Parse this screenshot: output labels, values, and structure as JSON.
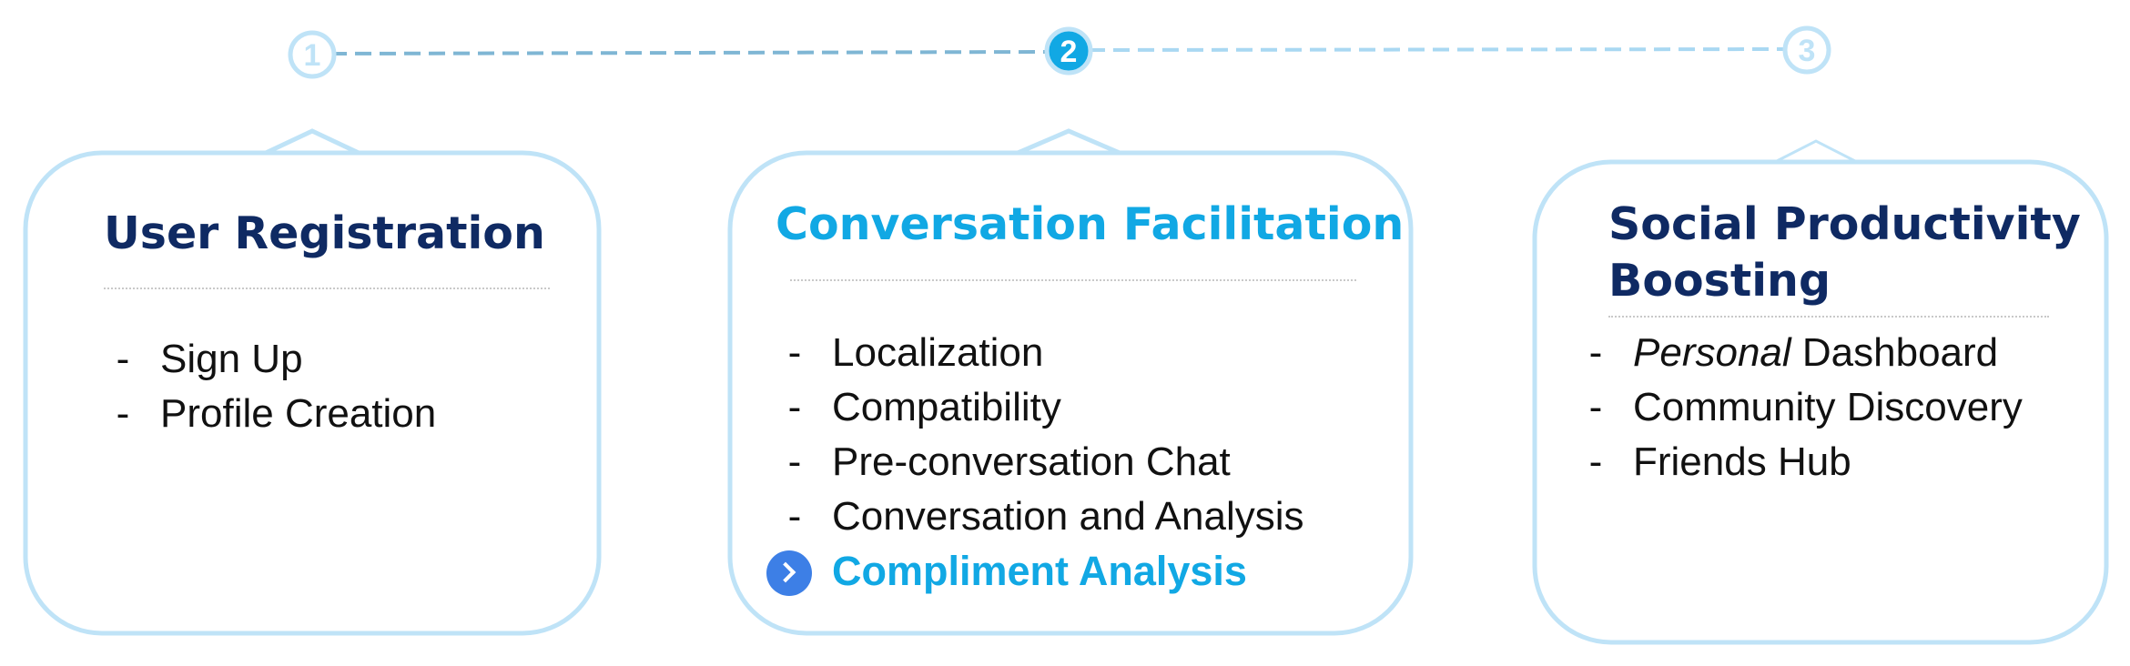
{
  "stages": [
    {
      "number": "1",
      "title": "User Registration",
      "title_line2": "",
      "items": [
        {
          "text": "Sign Up",
          "prefix_italic": ""
        },
        {
          "text": "Profile Creation",
          "prefix_italic": ""
        }
      ]
    },
    {
      "number": "2",
      "title": "Conversation Facilitation",
      "title_line2": "",
      "active": true,
      "items": [
        {
          "text": "Localization",
          "prefix_italic": ""
        },
        {
          "text": "Compatibility",
          "prefix_italic": ""
        },
        {
          "text": "Pre-conversation Chat",
          "prefix_italic": ""
        },
        {
          "text": "Conversation and Analysis",
          "prefix_italic": ""
        },
        {
          "text": "Compliment Analysis",
          "prefix_italic": "",
          "highlighted": true
        }
      ]
    },
    {
      "number": "3",
      "title": "Social Productivity",
      "title_line2": "Boosting",
      "items": [
        {
          "text": " Dashboard",
          "prefix_italic": "Personal"
        },
        {
          "text": "Community Discovery",
          "prefix_italic": ""
        },
        {
          "text": "Friends Hub",
          "prefix_italic": ""
        }
      ]
    }
  ],
  "colors": {
    "active_accent": "#11a8e4",
    "inactive_outline": "#bfe3f7",
    "title_navy": "#0f2a63",
    "chevron_blue": "#3d7fe6"
  },
  "icons": {
    "highlighted_item": "chevron-right-icon"
  }
}
